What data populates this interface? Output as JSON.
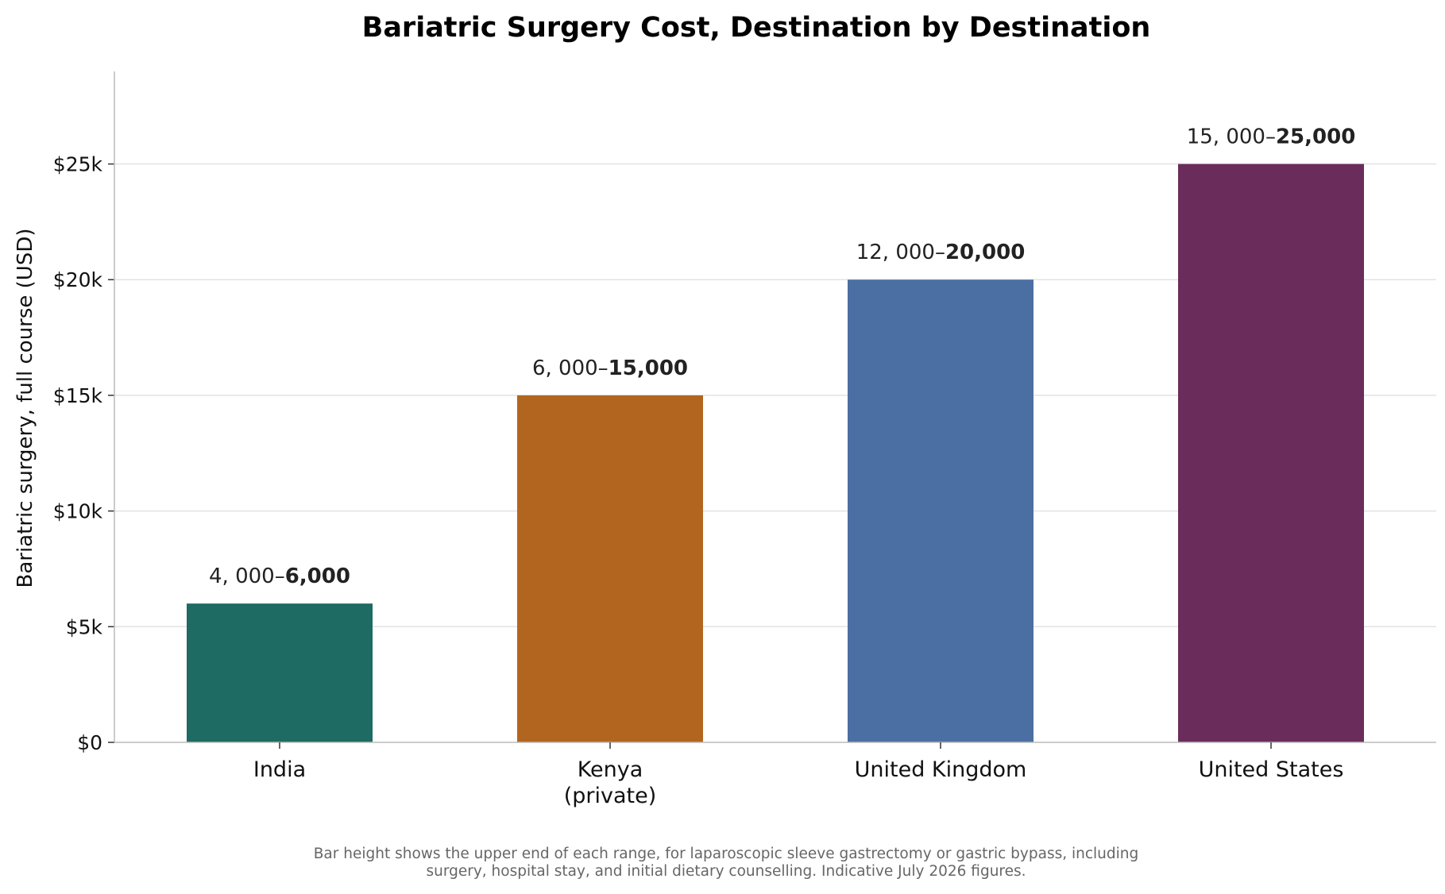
{
  "chart_data": {
    "type": "bar",
    "title": "Bariatric Surgery Cost, Destination by Destination",
    "ylabel": "Bariatric surgery, full course (USD)",
    "xlabel": "",
    "categories": [
      "India",
      "Kenya\n(private)",
      "United Kingdom",
      "United States"
    ],
    "values": [
      6000,
      15000,
      20000,
      25000
    ],
    "ranges": [
      {
        "low": 4000,
        "high": 6000,
        "low_text": "4, 000–",
        "high_text": "6,000"
      },
      {
        "low": 6000,
        "high": 15000,
        "low_text": "6, 000–",
        "high_text": "15,000"
      },
      {
        "low": 12000,
        "high": 20000,
        "low_text": "12, 000–",
        "high_text": "20,000"
      },
      {
        "low": 15000,
        "high": 25000,
        "low_text": "15, 000–",
        "high_text": "25,000"
      }
    ],
    "colors": [
      "#1d6b62",
      "#b2651f",
      "#4b6fa3",
      "#6a2c5b"
    ],
    "yticks": [
      0,
      5000,
      10000,
      15000,
      20000,
      25000
    ],
    "ytick_labels": [
      "$0",
      "$5k",
      "$10k",
      "$15k",
      "$20k",
      "$25k"
    ],
    "ylim": [
      0,
      29000
    ],
    "grid": true,
    "gridline_color": "#e3e3e3",
    "axis_color": "#bbbbbb",
    "footnote": [
      "Bar height shows the upper end of each range, for laparoscopic sleeve gastrectomy or gastric bypass, including",
      "surgery, hospital stay, and initial dietary counselling. Indicative July 2026 figures."
    ]
  }
}
